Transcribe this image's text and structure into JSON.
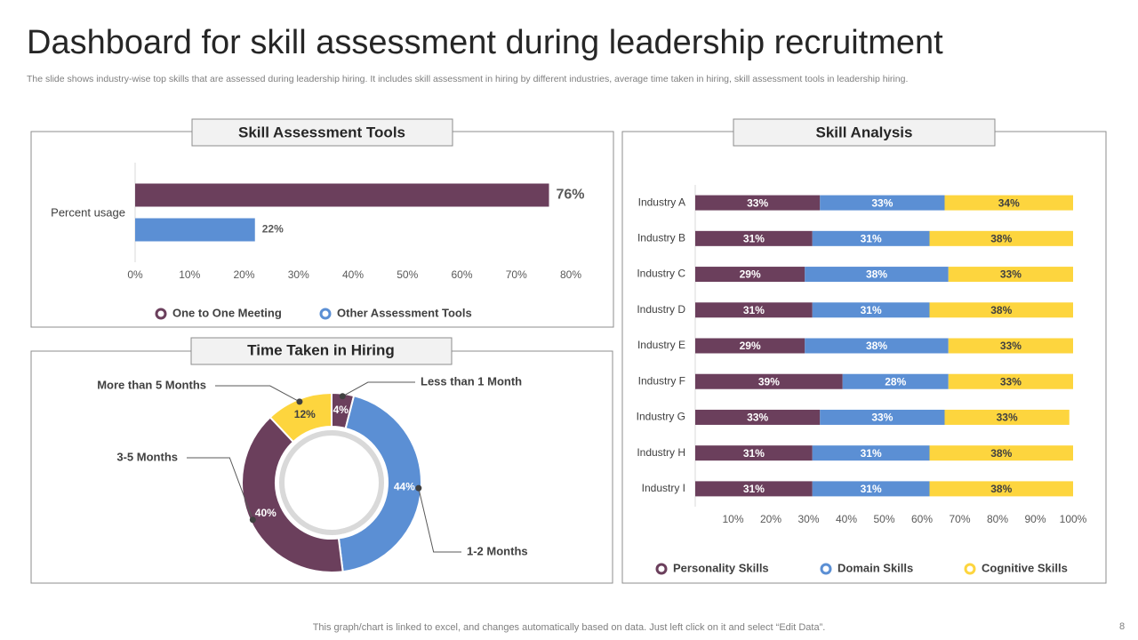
{
  "title": "Dashboard for skill assessment during leadership recruitment",
  "subtitle": "The slide shows industry-wise top skills that are assessed during leadership hiring. It includes skill assessment in hiring by different industries, average time taken in hiring, skill assessment tools in leadership hiring.",
  "footer": "This graph/chart is linked to excel, and changes automatically based on data. Just left click on it and select “Edit Data”.",
  "page_number": 8,
  "chart_data": [
    {
      "type": "bar",
      "title": "Skill Assessment Tools",
      "categories": [
        "Percent usage"
      ],
      "series": [
        {
          "name": "One to One Meeting",
          "color": "#6b3f5c",
          "values": [
            76
          ],
          "value_labels": [
            "76%"
          ]
        },
        {
          "name": "Other Assessment  Tools",
          "color": "#5b8fd4",
          "values": [
            22
          ],
          "value_labels": [
            "22%"
          ]
        }
      ],
      "xlim": [
        0,
        80
      ],
      "xticks": [
        {
          "value": 0,
          "label": "0%"
        },
        {
          "value": 10,
          "label": "10%"
        },
        {
          "value": 20,
          "label": "20%"
        },
        {
          "value": 30,
          "label": "30%"
        },
        {
          "value": 40,
          "label": "40%"
        },
        {
          "value": 50,
          "label": "50%"
        },
        {
          "value": 60,
          "label": "60%"
        },
        {
          "value": 70,
          "label": "70%"
        },
        {
          "value": 80,
          "label": "80%"
        }
      ]
    },
    {
      "type": "donut",
      "title": "Time Taken in Hiring",
      "categories": [
        "Less than 1 Month",
        "1-2 Months",
        "3-5 Months",
        "More than 5 Months"
      ],
      "values": [
        4,
        44,
        40,
        12
      ],
      "value_labels": [
        "4%",
        "44%",
        "40%",
        "12%"
      ],
      "colors": [
        "#6b3f5c",
        "#5b8fd4",
        "#6b3f5c",
        "#fdd53e"
      ]
    },
    {
      "type": "stacked_bar",
      "title": "Skill Analysis",
      "categories": [
        "Industry A",
        "Industry B",
        "Industry C",
        "Industry D",
        "Industry E",
        "Industry F",
        "Industry G",
        "Industry H",
        "Industry I"
      ],
      "series": [
        {
          "name": "Personality Skills",
          "color": "#6b3f5c",
          "values": [
            33,
            31,
            29,
            31,
            29,
            39,
            33,
            31,
            31
          ],
          "value_labels": [
            "33%",
            "31%",
            "29%",
            "31%",
            "29%",
            "39%",
            "33%",
            "31%",
            "31%"
          ]
        },
        {
          "name": "Domain Skills",
          "color": "#5b8fd4",
          "values": [
            33,
            31,
            38,
            31,
            38,
            28,
            33,
            31,
            31
          ],
          "value_labels": [
            "33%",
            "31%",
            "38%",
            "31%",
            "38%",
            "28%",
            "33%",
            "31%",
            "31%"
          ]
        },
        {
          "name": "Cognitive Skills",
          "color": "#fdd53e",
          "values": [
            34,
            38,
            33,
            38,
            33,
            33,
            33,
            38,
            38
          ],
          "value_labels": [
            "34%",
            "38%",
            "33%",
            "38%",
            "33%",
            "33%",
            "33%",
            "38%",
            "38%"
          ]
        }
      ],
      "xlim": [
        0,
        100
      ],
      "xticks": [
        {
          "value": 10,
          "label": "10%"
        },
        {
          "value": 20,
          "label": "20%"
        },
        {
          "value": 30,
          "label": "30%"
        },
        {
          "value": 40,
          "label": "40%"
        },
        {
          "value": 50,
          "label": "50%"
        },
        {
          "value": 60,
          "label": "60%"
        },
        {
          "value": 70,
          "label": "70%"
        },
        {
          "value": 80,
          "label": "80%"
        },
        {
          "value": 90,
          "label": "90%"
        },
        {
          "value": 100,
          "label": "100%"
        }
      ]
    }
  ]
}
